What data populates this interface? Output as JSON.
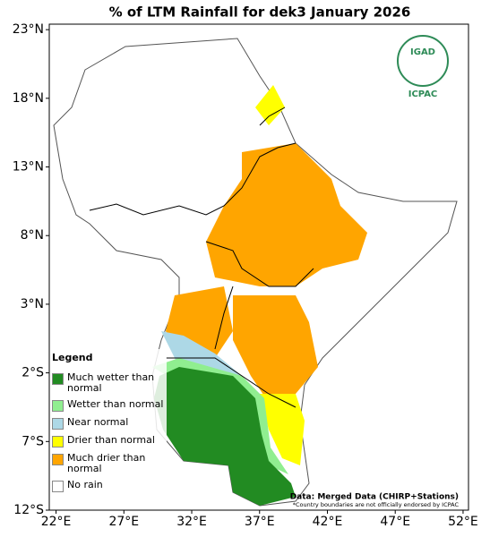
{
  "title": "% of LTM Rainfall for dek3 January 2026",
  "map": {
    "xlim": [
      21.5,
      52.4
    ],
    "ylim": [
      -12,
      23.4
    ],
    "xticks": [
      {
        "value": 22,
        "label": "22°E"
      },
      {
        "value": 27,
        "label": "27°E"
      },
      {
        "value": 32,
        "label": "32°E"
      },
      {
        "value": 37,
        "label": "37°E"
      },
      {
        "value": 42,
        "label": "42°E"
      },
      {
        "value": 47,
        "label": "47°E"
      },
      {
        "value": 52,
        "label": "52°E"
      }
    ],
    "yticks": [
      {
        "value": 23,
        "label": "23°N"
      },
      {
        "value": 18,
        "label": "18°N"
      },
      {
        "value": 13,
        "label": "13°N"
      },
      {
        "value": 8,
        "label": "8°N"
      },
      {
        "value": 3,
        "label": "3°N"
      },
      {
        "value": -2,
        "label": "2°S"
      },
      {
        "value": -7,
        "label": "7°S"
      },
      {
        "value": -12,
        "label": "12°S"
      }
    ]
  },
  "legend": {
    "title": "Legend",
    "items": [
      {
        "label": "Much wetter than normal",
        "color": "#228b22"
      },
      {
        "label": "Wetter than normal",
        "color": "#90ee90"
      },
      {
        "label": "Near normal",
        "color": "#add8e6"
      },
      {
        "label": "Drier than normal",
        "color": "#ffff00"
      },
      {
        "label": "Much drier than normal",
        "color": "#ffa500"
      },
      {
        "label": "No rain",
        "color": "#ffffff"
      }
    ]
  },
  "logo": {
    "top": "IGAD",
    "bottom": "ICPAC"
  },
  "source": "Data: Merged Data (CHIRP+Stations)",
  "disclaimer": "*Country boundaries are not officially endorsed by ICPAC"
}
